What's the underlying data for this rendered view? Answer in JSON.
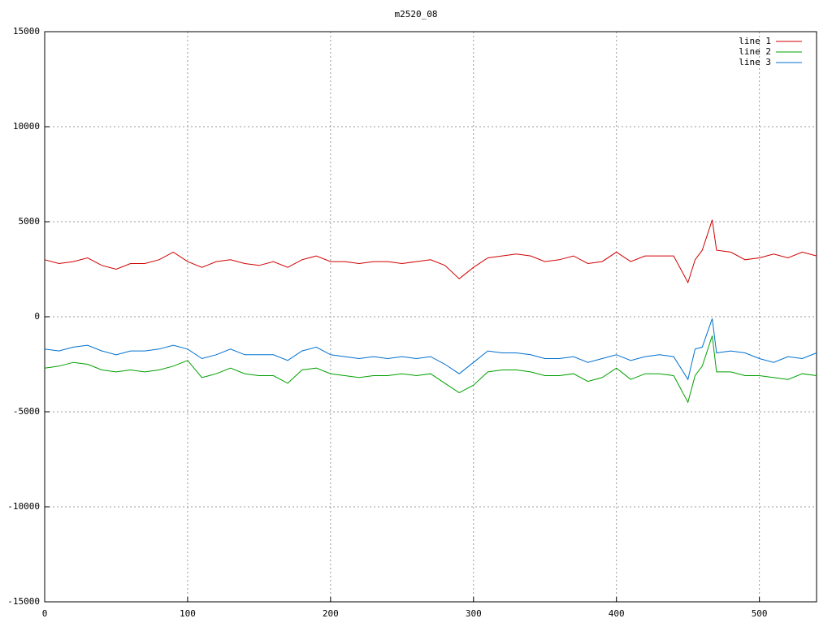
{
  "chart_data": {
    "type": "line",
    "title": "m2520_08",
    "x": [
      0,
      10,
      20,
      30,
      40,
      50,
      60,
      70,
      80,
      90,
      100,
      110,
      120,
      130,
      140,
      150,
      160,
      170,
      180,
      190,
      200,
      210,
      220,
      230,
      240,
      250,
      260,
      270,
      280,
      290,
      300,
      310,
      320,
      330,
      340,
      350,
      360,
      370,
      380,
      390,
      400,
      410,
      420,
      430,
      440,
      450,
      455,
      460,
      467,
      470,
      480,
      490,
      500,
      510,
      520,
      530,
      540
    ],
    "series": [
      {
        "name": "line 1",
        "color": "#d00000",
        "values": [
          3000,
          2800,
          2900,
          3100,
          2700,
          2500,
          2800,
          2800,
          3000,
          3400,
          2900,
          2600,
          2900,
          3000,
          2800,
          2700,
          2900,
          2600,
          3000,
          3200,
          2900,
          2900,
          2800,
          2900,
          2900,
          2800,
          2900,
          3000,
          2700,
          2000,
          2600,
          3100,
          3200,
          3300,
          3200,
          2900,
          3000,
          3200,
          2800,
          2900,
          3400,
          2900,
          3200,
          3200,
          3200,
          1800,
          3000,
          3500,
          5100,
          3500,
          3400,
          3000,
          3100,
          3300,
          3100,
          3400,
          3200
        ]
      },
      {
        "name": "line 2",
        "color": "#00a000",
        "values": [
          -2700,
          -2600,
          -2400,
          -2500,
          -2800,
          -2900,
          -2800,
          -2900,
          -2800,
          -2600,
          -2300,
          -3200,
          -3000,
          -2700,
          -3000,
          -3100,
          -3100,
          -3500,
          -2800,
          -2700,
          -3000,
          -3100,
          -3200,
          -3100,
          -3100,
          -3000,
          -3100,
          -3000,
          -3500,
          -4000,
          -3600,
          -2900,
          -2800,
          -2800,
          -2900,
          -3100,
          -3100,
          -3000,
          -3400,
          -3200,
          -2700,
          -3300,
          -3000,
          -3000,
          -3100,
          -4500,
          -3100,
          -2600,
          -1000,
          -2900,
          -2900,
          -3100,
          -3100,
          -3200,
          -3300,
          -3000,
          -3100
        ]
      },
      {
        "name": "line 3",
        "color": "#0070d0",
        "values": [
          -1700,
          -1800,
          -1600,
          -1500,
          -1800,
          -2000,
          -1800,
          -1800,
          -1700,
          -1500,
          -1700,
          -2200,
          -2000,
          -1700,
          -2000,
          -2000,
          -2000,
          -2300,
          -1800,
          -1600,
          -2000,
          -2100,
          -2200,
          -2100,
          -2200,
          -2100,
          -2200,
          -2100,
          -2500,
          -3000,
          -2400,
          -1800,
          -1900,
          -1900,
          -2000,
          -2200,
          -2200,
          -2100,
          -2400,
          -2200,
          -2000,
          -2300,
          -2100,
          -2000,
          -2100,
          -3300,
          -1700,
          -1600,
          -100,
          -1900,
          -1800,
          -1900,
          -2200,
          -2400,
          -2100,
          -2200,
          -1900
        ]
      }
    ],
    "xlim": [
      0,
      540
    ],
    "xticks": [
      0,
      100,
      200,
      300,
      400,
      500
    ],
    "ylim": [
      -15000,
      15000
    ],
    "yticks": [
      -15000,
      -10000,
      -5000,
      0,
      5000,
      10000,
      15000
    ],
    "grid": true,
    "legend": "top-right"
  }
}
